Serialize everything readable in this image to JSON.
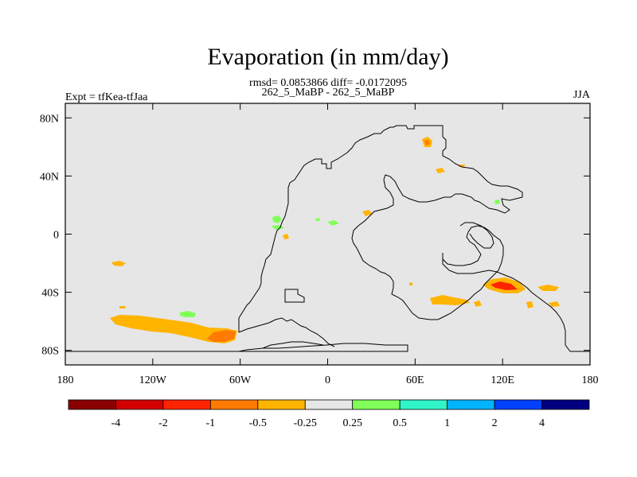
{
  "title": "Evaporation (in mm/day)",
  "stats": "rmsd= 0.0853866 diff= -0.0172095",
  "experiment_label": "Expt = tfKea-tfJaa",
  "period_label": "262_5_MaBP - 262_5_MaBP",
  "season": "JJA",
  "map": {
    "projection": "cylindrical-equidistant",
    "lon_range": [
      -180,
      180
    ],
    "lat_range": [
      -90,
      90
    ],
    "background_color": "#e6e6e6",
    "y_ticks": [
      "80N",
      "40N",
      "0",
      "40S",
      "80S"
    ],
    "y_tick_values": [
      80,
      40,
      0,
      -40,
      -80
    ],
    "x_ticks": [
      "180",
      "120W",
      "60W",
      "0",
      "60E",
      "120E",
      "180"
    ],
    "x_tick_values": [
      -180,
      -120,
      -60,
      0,
      60,
      120,
      180
    ]
  },
  "colorbar": {
    "colors": [
      "#8b0000",
      "#d40000",
      "#ff2400",
      "#ff7a00",
      "#ffb400",
      "#e6e6e6",
      "#80ff5a",
      "#30f5c8",
      "#00b4ff",
      "#0040ff",
      "#000080"
    ],
    "labels": [
      "-4",
      "-2",
      "-1",
      "-0.5",
      "-0.25",
      "0.25",
      "0.5",
      "1",
      "2",
      "4"
    ]
  },
  "anomalies": [
    {
      "level": "-0.25",
      "color": "#ffb400",
      "area": "South Pacific band 50-72S, 145W-65W"
    },
    {
      "level": "-0.5",
      "color": "#ff7a00",
      "area": "core of South Pacific band near 68S, 70W"
    },
    {
      "level": "-0.5",
      "color": "#ff7a00",
      "area": "northern landmass near 62N, 70E"
    },
    {
      "level": "-0.25",
      "color": "#ffb400",
      "area": "southern ocean near 45S, 85E"
    },
    {
      "level": "-1",
      "color": "#ff2400",
      "area": "southern ocean near 35S, 120E"
    },
    {
      "level": "0.25",
      "color": "#80ff5a",
      "area": "equatorial Atlantic near 10N, 30W"
    },
    {
      "level": "0.25",
      "color": "#80ff5a",
      "area": "South Pacific near 55S, 95W"
    }
  ]
}
